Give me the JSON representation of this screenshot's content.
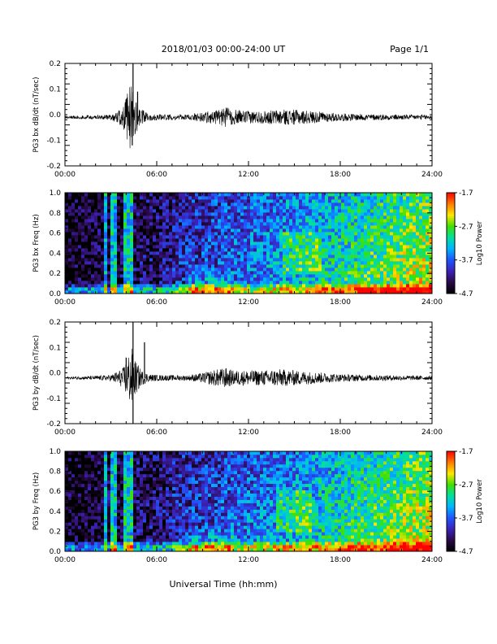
{
  "header": {
    "title": "2018/01/03  00:00-24:00 UT",
    "page": "Page 1/1"
  },
  "footer": {
    "xlabel": "Universal Time (hh:mm)"
  },
  "chart_data": [
    {
      "type": "line",
      "ylabel": "PG3 bx dB/dt (nT/sec)",
      "ylim": [
        -0.2,
        0.2
      ],
      "yticks": [
        "0.2",
        "0.1",
        "0.0",
        "-0.1",
        "-0.2"
      ],
      "ytick_values": [
        0.2,
        0.1,
        0.0,
        -0.1,
        -0.2
      ],
      "xlim": [
        0,
        24
      ],
      "xticks": [
        "00:00",
        "06:00",
        "12:00",
        "18:00",
        "24:00"
      ],
      "xtick_values": [
        0,
        6,
        12,
        18,
        24
      ],
      "baseline": -0.01,
      "envelope": {
        "hours": [
          0,
          2,
          3,
          3.8,
          4.0,
          4.2,
          4.4,
          4.5,
          4.7,
          5.0,
          5.5,
          6,
          8,
          9,
          10,
          10.5,
          11,
          12,
          13,
          14,
          15,
          16,
          17,
          18,
          20,
          22,
          24
        ],
        "amplitude": [
          0.005,
          0.008,
          0.01,
          0.04,
          0.08,
          0.12,
          0.15,
          0.08,
          0.06,
          0.03,
          0.015,
          0.012,
          0.01,
          0.02,
          0.03,
          0.04,
          0.03,
          0.025,
          0.025,
          0.03,
          0.03,
          0.025,
          0.02,
          0.015,
          0.012,
          0.01,
          0.01
        ]
      },
      "spikes": [
        {
          "hour": 4.45,
          "value": 0.2
        },
        {
          "hour": 4.4,
          "value": -0.12
        },
        {
          "hour": 4.0,
          "value": 0.06
        },
        {
          "hour": 4.75,
          "value": 0.09
        }
      ]
    },
    {
      "type": "heatmap",
      "ylabel": "PG3 bx Freq (Hz)",
      "ylim": [
        0.0,
        1.0
      ],
      "yticks": [
        "1.0",
        "0.8",
        "0.6",
        "0.4",
        "0.2",
        "0.0"
      ],
      "ytick_values": [
        1.0,
        0.8,
        0.6,
        0.4,
        0.2,
        0.0
      ],
      "xlim": [
        0,
        24
      ],
      "xticks": [
        "00:00",
        "06:00",
        "12:00",
        "18:00",
        "24:00"
      ],
      "xtick_values": [
        0,
        6,
        12,
        18,
        24
      ],
      "colorbar": {
        "label": "Log10 Power",
        "range": [
          -4.7,
          -1.7
        ],
        "tick_labels": [
          "-1.7",
          "-2.7",
          "-3.7",
          "-4.7"
        ],
        "tick_values": [
          -1.7,
          -2.7,
          -3.7,
          -4.7
        ]
      },
      "features": {
        "time_bright_hours": [
          4.4,
          4.0,
          3.2,
          2.6
        ],
        "mid_patch": {
          "hour": 15.5,
          "freq": [
            0.2,
            0.6
          ]
        }
      }
    },
    {
      "type": "line",
      "ylabel": "PG3 by dB/dt (nT/sec)",
      "ylim": [
        -0.2,
        0.2
      ],
      "yticks": [
        "0.2",
        "0.1",
        "0.0",
        "-0.1",
        "-0.2"
      ],
      "ytick_values": [
        0.2,
        0.1,
        0.0,
        -0.1,
        -0.2
      ],
      "xlim": [
        0,
        24
      ],
      "xticks": [
        "00:00",
        "06:00",
        "12:00",
        "18:00",
        "24:00"
      ],
      "xtick_values": [
        0,
        6,
        12,
        18,
        24
      ],
      "baseline": -0.02,
      "envelope": {
        "hours": [
          0,
          2,
          3,
          3.8,
          4.0,
          4.2,
          4.4,
          4.5,
          4.7,
          5.0,
          5.5,
          6,
          8,
          9,
          10,
          10.5,
          11,
          12,
          13,
          14,
          15,
          16,
          17,
          18,
          20,
          22,
          24
        ],
        "amplitude": [
          0.004,
          0.008,
          0.012,
          0.04,
          0.07,
          0.1,
          0.12,
          0.08,
          0.06,
          0.03,
          0.015,
          0.012,
          0.01,
          0.02,
          0.035,
          0.04,
          0.03,
          0.03,
          0.03,
          0.035,
          0.03,
          0.025,
          0.02,
          0.015,
          0.012,
          0.01,
          0.008
        ]
      },
      "spikes": [
        {
          "hour": 4.45,
          "value": 0.2
        },
        {
          "hour": 4.45,
          "value": -0.2
        },
        {
          "hour": 5.2,
          "value": 0.12
        },
        {
          "hour": 4.0,
          "value": 0.06
        }
      ]
    },
    {
      "type": "heatmap",
      "ylabel": "PG3 by Freq (Hz)",
      "ylim": [
        0.0,
        1.0
      ],
      "yticks": [
        "1.0",
        "0.8",
        "0.6",
        "0.4",
        "0.2",
        "0.0"
      ],
      "ytick_values": [
        1.0,
        0.8,
        0.6,
        0.4,
        0.2,
        0.0
      ],
      "xlim": [
        0,
        24
      ],
      "xticks": [
        "00:00",
        "06:00",
        "12:00",
        "18:00",
        "24:00"
      ],
      "xtick_values": [
        0,
        6,
        12,
        18,
        24
      ],
      "colorbar": {
        "label": "Log10 Power",
        "range": [
          -4.7,
          -1.7
        ],
        "tick_labels": [
          "-1.7",
          "-2.7",
          "-3.7",
          "-4.7"
        ],
        "tick_values": [
          -1.7,
          -2.7,
          -3.7,
          -4.7
        ]
      },
      "features": {
        "time_bright_hours": [
          4.4,
          4.0,
          3.2,
          2.6
        ],
        "mid_patch": {
          "hour": 15.0,
          "freq": [
            0.2,
            0.6
          ]
        }
      }
    }
  ],
  "colors": {
    "trace": "#000000",
    "axis": "#000000",
    "colormap": [
      "#000000",
      "#2a0a4a",
      "#3c22b8",
      "#1f55ff",
      "#00b4ff",
      "#00e0a0",
      "#40e000",
      "#ffe800",
      "#ff7a00",
      "#ff0000"
    ]
  }
}
